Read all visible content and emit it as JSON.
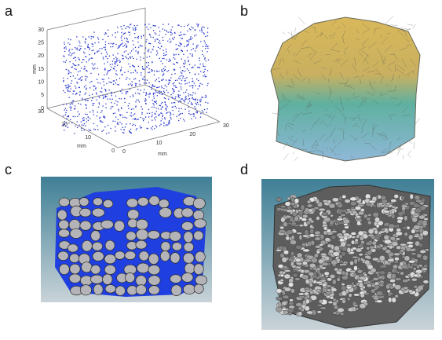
{
  "panels": [
    {
      "label": "a",
      "axes": {
        "z_label": "mm",
        "z_ticks": [
          0,
          5,
          10,
          15,
          20,
          25,
          30
        ],
        "y_label": "mm",
        "y_ticks": [
          0,
          10,
          20,
          30
        ],
        "x_label": "mm",
        "x_ticks": [
          0,
          10,
          20,
          30
        ]
      }
    },
    {
      "label": "b"
    },
    {
      "label": "c"
    },
    {
      "label": "d"
    }
  ]
}
